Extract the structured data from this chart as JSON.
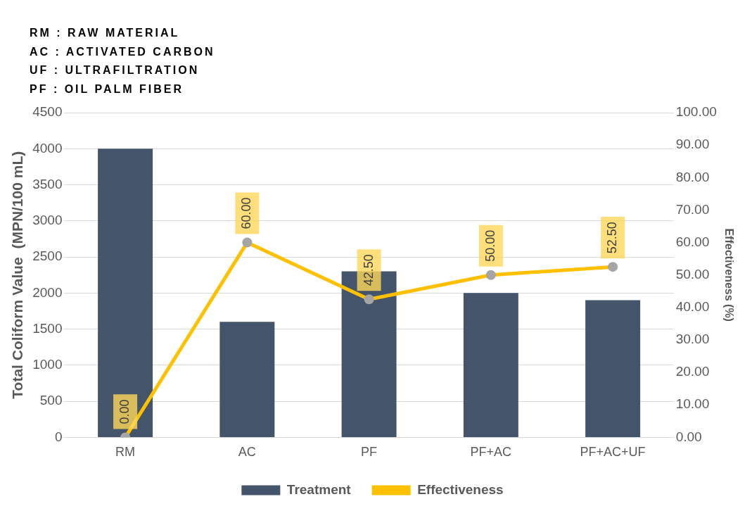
{
  "chart_data": {
    "type": "bar",
    "categories": [
      "RM",
      "AC",
      "PF",
      "PF+AC",
      "PF+AC+UF"
    ],
    "series": [
      {
        "name": "Treatment",
        "color": "#44546a",
        "values": [
          4000,
          1600,
          2300,
          2000,
          1900
        ]
      },
      {
        "name": "Effectiveness",
        "type": "line",
        "axis": "y2",
        "color": "#ffc000",
        "values": [
          0,
          60,
          42.5,
          50,
          52.5
        ],
        "value_labels": [
          "0.00",
          "60.00",
          "42.50",
          "50.00",
          "52.50"
        ]
      }
    ],
    "ylabel": "Total Coliform Value  (MPN/100 mL)",
    "y2label": "Effectiveness (%)",
    "ylim": [
      0,
      4500
    ],
    "yticks": [
      0,
      500,
      1000,
      1500,
      2000,
      2500,
      3000,
      3500,
      4000,
      4500
    ],
    "y2lim": [
      0,
      100
    ],
    "y2ticks": [
      {
        "value": 0,
        "label": "0.00"
      },
      {
        "value": 10,
        "label": "10.00"
      },
      {
        "value": 20,
        "label": "20.00"
      },
      {
        "value": 30,
        "label": "30.00"
      },
      {
        "value": 40,
        "label": "40.00"
      },
      {
        "value": 50,
        "label": "50.00"
      },
      {
        "value": 60,
        "label": "60.00"
      },
      {
        "value": 70,
        "label": "70.00"
      },
      {
        "value": 80,
        "label": "80.00"
      },
      {
        "value": 90,
        "label": "90.00"
      },
      {
        "value": 100,
        "label": "100.00"
      }
    ],
    "annotations": [
      "RM : RAW MATERIAL",
      "AC : ACTIVATED CARBON",
      "UF : ULTRAFILTRATION",
      "PF : OIL PALM FIBER"
    ],
    "grid": "y",
    "legend": "bottom",
    "marker": "circle",
    "line_style": "solid"
  }
}
